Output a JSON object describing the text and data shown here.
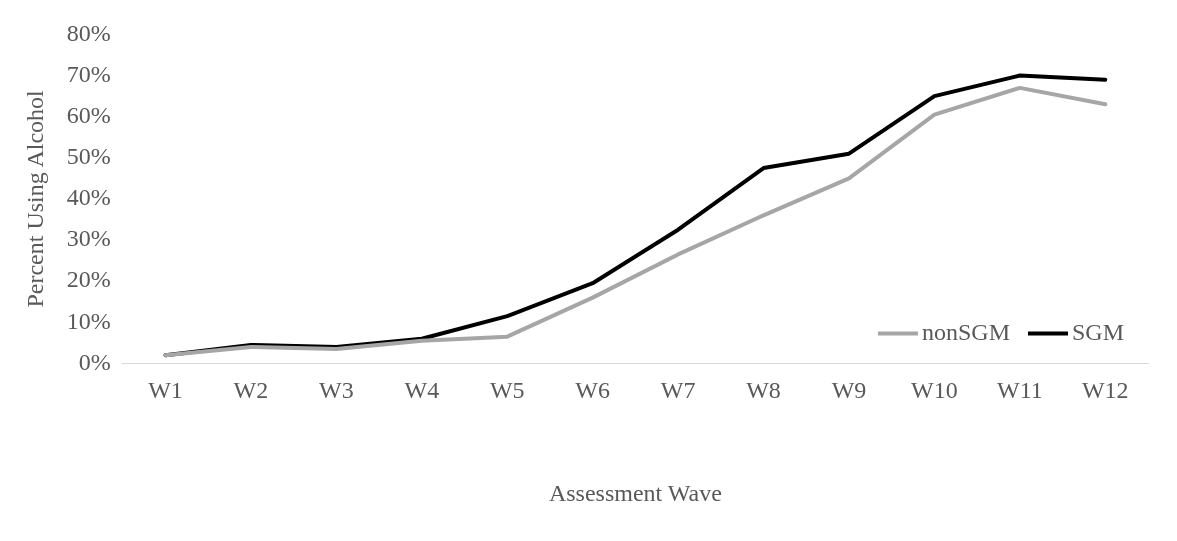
{
  "chart_data": {
    "type": "line",
    "xlabel": "Assessment Wave",
    "ylabel": "Percent Using Alcohol",
    "categories": [
      "W1",
      "W2",
      "W3",
      "W4",
      "W5",
      "W6",
      "W7",
      "W8",
      "W9",
      "W10",
      "W11",
      "W12"
    ],
    "series": [
      {
        "name": "nonSGM",
        "color": "#a6a6a6",
        "values": [
          2,
          4,
          3.5,
          5.5,
          6.5,
          16,
          26.5,
          36,
          45,
          60.5,
          67,
          63
        ]
      },
      {
        "name": "SGM",
        "color": "#000000",
        "values": [
          2,
          4.5,
          4,
          6,
          11.5,
          19.5,
          32.5,
          47.5,
          51,
          65,
          70,
          69
        ]
      }
    ],
    "ylim": [
      0,
      80
    ],
    "yticks": [
      {
        "value": 0,
        "label": "0%"
      },
      {
        "value": 10,
        "label": "10%"
      },
      {
        "value": 20,
        "label": "20%"
      },
      {
        "value": 30,
        "label": "30%"
      },
      {
        "value": 40,
        "label": "40%"
      },
      {
        "value": 50,
        "label": "50%"
      },
      {
        "value": 60,
        "label": "60%"
      },
      {
        "value": 70,
        "label": "70%"
      },
      {
        "value": 80,
        "label": "80%"
      }
    ],
    "grid": false,
    "legend": "bottom right",
    "marker": "none",
    "line_style": "solid"
  }
}
